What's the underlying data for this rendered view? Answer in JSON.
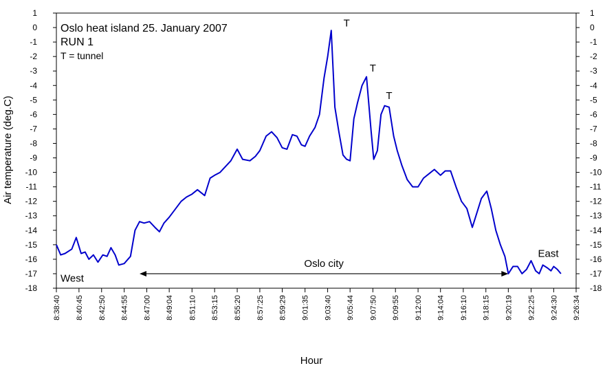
{
  "chart_data": {
    "type": "line",
    "title": "Oslo heat island 25. January 2007",
    "subtitle": "RUN 1",
    "note": "T = tunnel",
    "xlabel": "Hour",
    "ylabel": "Air temperature (deg.C)",
    "ylim": [
      -18,
      1
    ],
    "yticks": [
      1,
      0,
      -1,
      -2,
      -3,
      -4,
      -5,
      -6,
      -7,
      -8,
      -9,
      -10,
      -11,
      -12,
      -13,
      -14,
      -15,
      -16,
      -17,
      -18
    ],
    "xlim": [
      "8:38:40",
      "9:26:34"
    ],
    "xticks": [
      "8:38:40",
      "8:40:45",
      "8:42:50",
      "8:44:55",
      "8:47:00",
      "8:49:04",
      "8:51:10",
      "8:53:15",
      "8:55:20",
      "8:57:25",
      "8:59:29",
      "9:01:35",
      "9:03:40",
      "9:05:44",
      "9:07:50",
      "9:09:55",
      "9:12:00",
      "9:14:04",
      "9:16:10",
      "9:18:15",
      "9:20:19",
      "9:22:25",
      "9:24:30",
      "9:26:34"
    ],
    "grid": false,
    "line_color": "#0000cc",
    "series": [
      {
        "x": [
          "8:38:40",
          "8:39:04",
          "8:39:28",
          "8:40:05",
          "8:40:30",
          "8:40:57",
          "8:41:19",
          "8:41:40",
          "8:42:05",
          "8:42:30",
          "8:42:57",
          "8:43:20",
          "8:43:42",
          "8:44:05",
          "8:44:25",
          "8:44:55",
          "8:45:30",
          "8:45:55",
          "8:46:20",
          "8:46:45",
          "8:47:15",
          "8:47:45",
          "8:48:10",
          "8:48:35",
          "8:49:04",
          "8:49:40",
          "8:50:10",
          "8:50:40",
          "8:51:10",
          "8:51:40",
          "8:52:20",
          "8:52:50",
          "8:53:15",
          "8:53:45",
          "8:54:15",
          "8:54:45",
          "8:55:20",
          "8:55:50",
          "8:56:30",
          "8:57:00",
          "8:57:25",
          "8:58:00",
          "8:58:30",
          "8:59:00",
          "8:59:29",
          "8:59:55",
          "9:00:25",
          "9:00:50",
          "9:01:15",
          "9:01:35",
          "9:02:00",
          "9:02:30",
          "9:02:55",
          "9:03:20",
          "9:03:40",
          "9:04:00",
          "9:04:20",
          "9:04:42",
          "9:05:05",
          "9:05:25",
          "9:05:44",
          "9:06:05",
          "9:06:25",
          "9:06:50",
          "9:07:15",
          "9:07:40",
          "9:07:55",
          "9:08:15",
          "9:08:35",
          "9:08:55",
          "9:09:20",
          "9:09:45",
          "9:10:05",
          "9:10:30",
          "9:11:00",
          "9:11:30",
          "9:12:00",
          "9:12:30",
          "9:13:00",
          "9:13:30",
          "9:14:04",
          "9:14:30",
          "9:15:00",
          "9:15:30",
          "9:16:00",
          "9:16:30",
          "9:17:00",
          "9:17:20",
          "9:17:50",
          "9:18:20",
          "9:18:45",
          "9:19:10",
          "9:19:35",
          "9:20:00",
          "9:20:19",
          "9:20:45",
          "9:21:10",
          "9:21:35",
          "9:22:00",
          "9:22:25",
          "9:22:50",
          "9:23:10",
          "9:23:30",
          "9:23:55",
          "9:24:15",
          "9:24:30",
          "9:24:50",
          "9:25:10"
        ],
        "y": [
          -15.0,
          -15.7,
          -15.6,
          -15.3,
          -14.5,
          -15.6,
          -15.5,
          -16.0,
          -15.7,
          -16.2,
          -15.7,
          -15.8,
          -15.2,
          -15.7,
          -16.4,
          -16.3,
          -15.8,
          -14.0,
          -13.4,
          -13.5,
          -13.4,
          -13.8,
          -14.1,
          -13.5,
          -13.1,
          -12.5,
          -12.0,
          -11.7,
          -11.5,
          -11.2,
          -11.6,
          -10.4,
          -10.2,
          -10.0,
          -9.6,
          -9.2,
          -8.4,
          -9.1,
          -9.2,
          -8.9,
          -8.5,
          -7.5,
          -7.2,
          -7.6,
          -8.3,
          -8.4,
          -7.4,
          -7.5,
          -8.1,
          -8.2,
          -7.5,
          -6.9,
          -6.0,
          -3.5,
          -2.0,
          -0.2,
          -5.5,
          -7.2,
          -8.8,
          -9.1,
          -9.2,
          -6.3,
          -5.2,
          -4.0,
          -3.4,
          -7.1,
          -9.1,
          -8.5,
          -6.0,
          -5.4,
          -5.5,
          -7.5,
          -8.5,
          -9.5,
          -10.5,
          -11.0,
          -11.0,
          -10.4,
          -10.1,
          -9.8,
          -10.2,
          -9.9,
          -9.9,
          -11.0,
          -12.0,
          -12.5,
          -13.8,
          -13.0,
          -11.8,
          -11.3,
          -12.5,
          -14.0,
          -15.0,
          -15.8,
          -17.0,
          -16.5,
          -16.5,
          -17.0,
          -16.7,
          -16.1,
          -16.8,
          -17.0,
          -16.4,
          -16.6,
          -16.8,
          -16.5,
          -16.7,
          -17.0
        ]
      }
    ],
    "annotations": {
      "tunnel_marks": [
        {
          "text": "T",
          "x": "9:05:25",
          "y": 0.3
        },
        {
          "text": "T",
          "x": "9:07:50",
          "y": -2.8
        },
        {
          "text": "T",
          "x": "9:09:20",
          "y": -4.7
        }
      ],
      "west_label": "West",
      "east_label": "East",
      "city_label": "Oslo city",
      "city_span": [
        "8:46:20",
        "9:20:19"
      ],
      "city_arrow_y": -17
    }
  }
}
